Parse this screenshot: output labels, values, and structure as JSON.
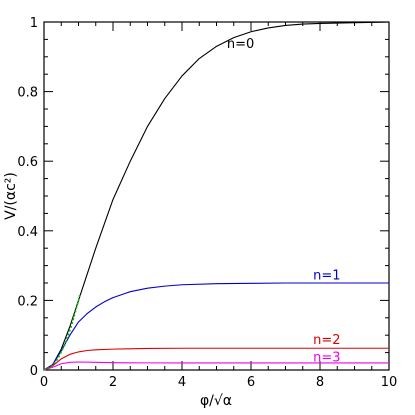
{
  "chart_data": {
    "type": "line",
    "xlabel": "φ/√α",
    "ylabel": "V/(αc²)",
    "xlim": [
      0,
      10
    ],
    "ylim": [
      0,
      1
    ],
    "xticks": [
      0,
      2,
      4,
      6,
      8,
      10
    ],
    "xtick_labels": [
      "0",
      "2",
      "4",
      "6",
      "8",
      "10"
    ],
    "yticks": [
      0,
      0.2,
      0.4,
      0.6,
      0.8,
      1
    ],
    "ytick_labels": [
      "0",
      "0.2",
      "0.4",
      "0.6",
      "0.8",
      "1"
    ],
    "grid": false,
    "series": [
      {
        "name": "n=0",
        "color": "#000000",
        "x": [
          0,
          0.25,
          0.5,
          0.75,
          1,
          1.25,
          1.5,
          1.75,
          2,
          2.5,
          3,
          3.5,
          4,
          4.5,
          5,
          5.5,
          6,
          6.5,
          7,
          7.5,
          8,
          9,
          10
        ],
        "y": [
          0,
          0.015,
          0.06,
          0.125,
          0.2,
          0.275,
          0.35,
          0.42,
          0.49,
          0.6,
          0.7,
          0.78,
          0.845,
          0.895,
          0.93,
          0.955,
          0.972,
          0.983,
          0.99,
          0.994,
          0.996,
          0.998,
          1.0
        ]
      },
      {
        "name": "n=1",
        "color": "#0000cc",
        "x": [
          0,
          0.25,
          0.5,
          0.75,
          1,
          1.25,
          1.5,
          1.75,
          2,
          2.5,
          3,
          3.5,
          4,
          5,
          6,
          7,
          8,
          9,
          10
        ],
        "y": [
          0,
          0.015,
          0.055,
          0.1,
          0.138,
          0.162,
          0.181,
          0.196,
          0.208,
          0.225,
          0.235,
          0.241,
          0.245,
          0.248,
          0.249,
          0.25,
          0.25,
          0.25,
          0.25
        ]
      },
      {
        "name": "n=2",
        "color": "#dd0000",
        "x": [
          0,
          0.25,
          0.5,
          0.75,
          1,
          1.25,
          1.5,
          2,
          2.5,
          3,
          4,
          5,
          6,
          7,
          8,
          9,
          10
        ],
        "y": [
          0,
          0.012,
          0.032,
          0.045,
          0.052,
          0.056,
          0.058,
          0.06,
          0.061,
          0.062,
          0.0625,
          0.0625,
          0.0625,
          0.0625,
          0.0625,
          0.0625,
          0.0625
        ]
      },
      {
        "name": "n=3",
        "color": "#ee00ee",
        "x": [
          0,
          0.25,
          0.5,
          0.75,
          1,
          1.5,
          2,
          3,
          4,
          5,
          6,
          7,
          8,
          9,
          10
        ],
        "y": [
          0,
          0.008,
          0.018,
          0.022,
          0.023,
          0.022,
          0.021,
          0.0205,
          0.0203,
          0.0202,
          0.0202,
          0.0202,
          0.0202,
          0.0202,
          0.0202
        ]
      },
      {
        "color": "#00bb00",
        "dashed": true,
        "x": [
          0,
          0.2,
          0.4,
          0.6,
          0.8,
          1.0,
          1.05
        ],
        "y": [
          0,
          0.008,
          0.032,
          0.072,
          0.128,
          0.2,
          0.2205
        ]
      }
    ],
    "annotations": [
      {
        "text": "n=0",
        "x": 5.3,
        "y": 0.925,
        "color": "#000000"
      },
      {
        "text": "n=1",
        "x": 7.8,
        "y": 0.26,
        "color": "#0000cc"
      },
      {
        "text": "n=2",
        "x": 7.8,
        "y": 0.075,
        "color": "#dd0000"
      },
      {
        "text": "n=3",
        "x": 7.8,
        "y": 0.024,
        "color": "#ee00ee"
      }
    ]
  }
}
